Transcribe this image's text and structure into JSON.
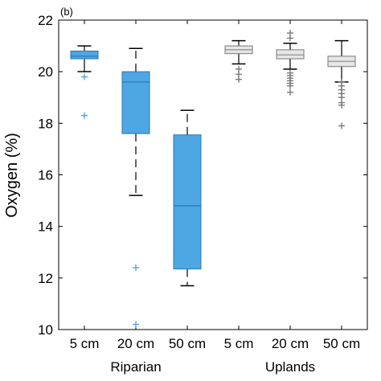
{
  "chart_data": {
    "type": "box",
    "panel_label": "(b)",
    "ylabel": "Oxygen (%)",
    "ylim": [
      10,
      22
    ],
    "yticks": [
      10,
      12,
      14,
      16,
      18,
      20,
      22
    ],
    "categories": [
      "5 cm",
      "20 cm",
      "50 cm",
      "5 cm",
      "20 cm",
      "50 cm"
    ],
    "groups": [
      {
        "label": "Riparian",
        "category_indices": [
          0,
          1,
          2
        ],
        "color": "#4ea6e3",
        "median_color": "#2a78b0",
        "outlier_color": "#4ea6e3"
      },
      {
        "label": "Uplands",
        "category_indices": [
          3,
          4,
          5
        ],
        "color": "#e6e6e6",
        "median_color": "#8a8a8a",
        "outlier_color": "#7a7a7a"
      }
    ],
    "boxes": [
      {
        "category": "5 cm",
        "group": "Riparian",
        "whisker_low": 20.0,
        "q1": 20.5,
        "median": 20.6,
        "q3": 20.8,
        "whisker_high": 21.0,
        "outliers": [
          19.8,
          18.3
        ]
      },
      {
        "category": "20 cm",
        "group": "Riparian",
        "whisker_low": 15.2,
        "q1": 17.6,
        "median": 19.6,
        "q3": 20.0,
        "whisker_high": 20.9,
        "outliers": [
          12.4,
          10.2
        ]
      },
      {
        "category": "50 cm",
        "group": "Riparian",
        "whisker_low": 11.7,
        "q1": 12.35,
        "median": 14.8,
        "q3": 17.55,
        "whisker_high": 18.5,
        "outliers": []
      },
      {
        "category": "5 cm",
        "group": "Uplands",
        "whisker_low": 20.3,
        "q1": 20.7,
        "median": 20.85,
        "q3": 21.0,
        "whisker_high": 21.2,
        "outliers": [
          20.1,
          19.9,
          19.7
        ]
      },
      {
        "category": "20 cm",
        "group": "Uplands",
        "whisker_low": 20.1,
        "q1": 20.5,
        "median": 20.65,
        "q3": 20.85,
        "whisker_high": 21.1,
        "outliers": [
          21.3,
          21.5,
          19.95,
          19.85,
          19.75,
          19.65,
          19.55,
          19.45,
          19.2
        ]
      },
      {
        "category": "50 cm",
        "group": "Uplands",
        "whisker_low": 19.6,
        "q1": 20.2,
        "median": 20.4,
        "q3": 20.6,
        "whisker_high": 21.2,
        "outliers": [
          19.6,
          19.45,
          19.3,
          19.15,
          19.0,
          18.8,
          18.7,
          17.9
        ]
      }
    ],
    "grid": false
  }
}
